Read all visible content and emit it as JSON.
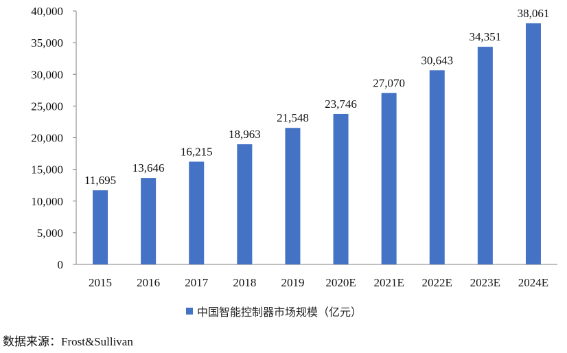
{
  "chart_data": {
    "type": "bar",
    "categories": [
      "2015",
      "2016",
      "2017",
      "2018",
      "2019",
      "2020E",
      "2021E",
      "2022E",
      "2023E",
      "2024E"
    ],
    "series": [
      {
        "name": "中国智能控制器市场规模（亿元）",
        "values": [
          11695,
          13646,
          16215,
          18963,
          21548,
          23746,
          27070,
          30643,
          34351,
          38061
        ],
        "labels": [
          "11,695",
          "13,646",
          "16,215",
          "18,963",
          "21,548",
          "23,746",
          "27,070",
          "30,643",
          "34,351",
          "38,061"
        ]
      }
    ],
    "ylim": [
      0,
      40000
    ],
    "yticks": [
      0,
      5000,
      10000,
      15000,
      20000,
      25000,
      30000,
      35000,
      40000
    ],
    "ytick_labels": [
      "0",
      "5,000",
      "10,000",
      "15,000",
      "20,000",
      "25,000",
      "30,000",
      "35,000",
      "40,000"
    ],
    "grid": false,
    "legend_position": "bottom",
    "bar_color": "#4472C4"
  },
  "source": {
    "prefix": "数据来源：",
    "name": "Frost&Sullivan"
  }
}
